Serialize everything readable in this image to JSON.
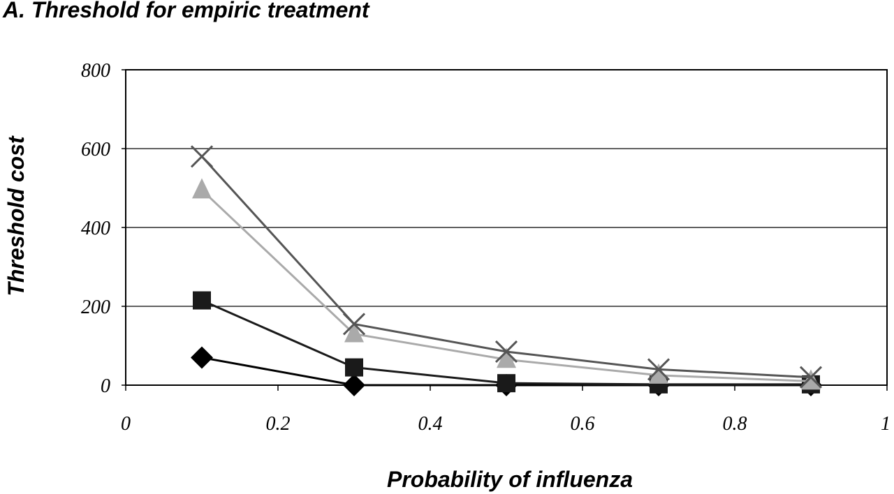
{
  "chart_data": {
    "type": "line",
    "title": "A. Threshold for empiric treatment",
    "xlabel": "Probability of influenza",
    "ylabel": "Threshold cost",
    "xlim": [
      0,
      1
    ],
    "ylim": [
      0,
      800
    ],
    "xticks": [
      "0",
      "0.2",
      "0.4",
      "0.6",
      "0.8",
      "1"
    ],
    "yticks": [
      "0",
      "200",
      "400",
      "600",
      "800"
    ],
    "grid": "horizontal",
    "legend": "none",
    "x": [
      0.1,
      0.3,
      0.5,
      0.7,
      0.9
    ],
    "series": [
      {
        "marker": "diamond",
        "color": "#000000",
        "values": [
          70,
          0,
          0,
          0,
          0
        ]
      },
      {
        "marker": "square",
        "color": "#1a1a1a",
        "values": [
          215,
          45,
          5,
          2,
          2
        ]
      },
      {
        "marker": "triangle",
        "color": "#aaaaaa",
        "values": [
          495,
          130,
          65,
          25,
          10
        ]
      },
      {
        "marker": "x",
        "color": "#555555",
        "values": [
          580,
          155,
          85,
          40,
          20
        ]
      }
    ]
  }
}
